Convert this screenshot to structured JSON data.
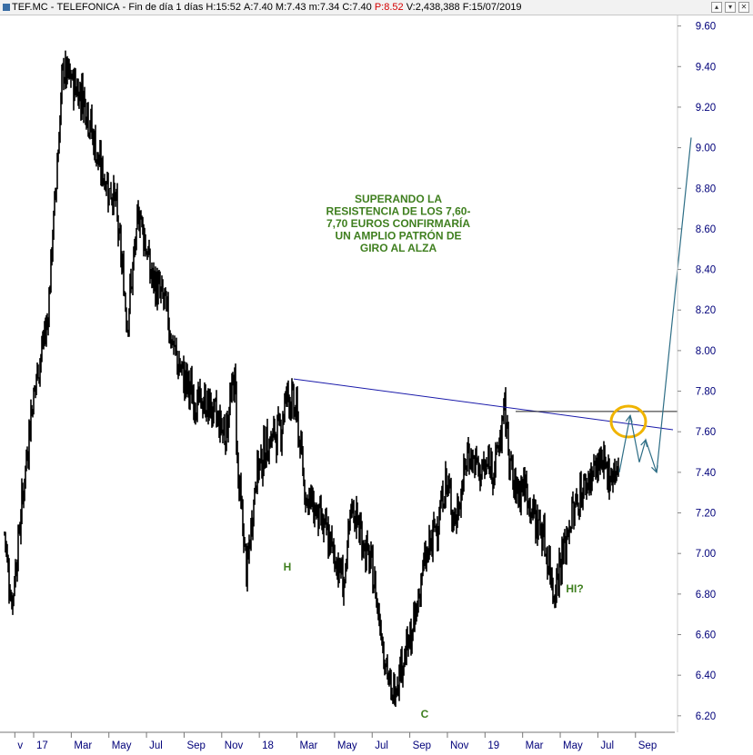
{
  "header": {
    "symbol": "TEF.MC",
    "name": "TELEFONICA",
    "period": "Fin de día 1 días",
    "h_label": "H:",
    "h_value": "15:52",
    "a_label": "A:",
    "a_value": "7.40",
    "m_label": "M:",
    "m_value": "7.43",
    "m2_label": "m:",
    "m2_value": "7.34",
    "c_label": "C:",
    "c_value": "7.40",
    "p_label": "P:",
    "p_value": "8.52",
    "v_label": "V:",
    "v_value": "2,438,388",
    "f_label": "F:",
    "f_value": "15/07/2019",
    "sep": "-"
  },
  "window_buttons": [
    "▴",
    "▾",
    "✕"
  ],
  "chart_data": {
    "type": "line",
    "title": "",
    "xlabel": "",
    "ylabel": "",
    "ylim": [
      6.1,
      9.62
    ],
    "y_ticks": [
      "9.60",
      "9.40",
      "9.20",
      "9.00",
      "8.80",
      "8.60",
      "8.40",
      "8.20",
      "8.00",
      "7.80",
      "7.60",
      "7.40",
      "7.20",
      "7.00",
      "6.80",
      "6.60",
      "6.40",
      "6.20"
    ],
    "x_ticks": [
      "v",
      "17",
      "Mar",
      "May",
      "Jul",
      "Sep",
      "Nov",
      "18",
      "Mar",
      "May",
      "Jul",
      "Sep",
      "Nov",
      "19",
      "Mar",
      "May",
      "Jul",
      "Sep"
    ],
    "colors": {
      "price": "#000000",
      "resistance": "#1a1aaa",
      "horizontal": "#222222",
      "projection": "#2e6e86",
      "annotation_text": "#3f7f1f",
      "highlight": "#f0b400",
      "axis_text": "#00007a"
    },
    "price_keypoints": [
      [
        0,
        7.1
      ],
      [
        0.012,
        6.75
      ],
      [
        0.045,
        7.75
      ],
      [
        0.07,
        8.15
      ],
      [
        0.095,
        9.38
      ],
      [
        0.13,
        9.25
      ],
      [
        0.155,
        8.9
      ],
      [
        0.18,
        8.75
      ],
      [
        0.2,
        8.15
      ],
      [
        0.22,
        8.7
      ],
      [
        0.24,
        8.35
      ],
      [
        0.26,
        8.25
      ],
      [
        0.28,
        7.95
      ],
      [
        0.31,
        7.75
      ],
      [
        0.335,
        7.72
      ],
      [
        0.36,
        7.6
      ],
      [
        0.375,
        7.88
      ],
      [
        0.38,
        7.4
      ],
      [
        0.395,
        6.9
      ],
      [
        0.41,
        7.4
      ],
      [
        0.43,
        7.55
      ],
      [
        0.45,
        7.62
      ],
      [
        0.46,
        7.8
      ],
      [
        0.475,
        7.7
      ],
      [
        0.49,
        7.3
      ],
      [
        0.51,
        7.2
      ],
      [
        0.53,
        7.05
      ],
      [
        0.555,
        6.85
      ],
      [
        0.565,
        7.25
      ],
      [
        0.58,
        7.1
      ],
      [
        0.6,
        6.9
      ],
      [
        0.615,
        6.6
      ],
      [
        0.63,
        6.28
      ],
      [
        0.645,
        6.45
      ],
      [
        0.665,
        6.6
      ],
      [
        0.68,
        6.9
      ],
      [
        0.7,
        7.1
      ],
      [
        0.72,
        7.35
      ],
      [
        0.735,
        7.15
      ],
      [
        0.755,
        7.5
      ],
      [
        0.775,
        7.4
      ],
      [
        0.8,
        7.45
      ],
      [
        0.815,
        7.7
      ],
      [
        0.83,
        7.3
      ],
      [
        0.845,
        7.35
      ],
      [
        0.86,
        7.2
      ],
      [
        0.875,
        7.12
      ],
      [
        0.895,
        6.82
      ],
      [
        0.91,
        7.0
      ],
      [
        0.925,
        7.2
      ],
      [
        0.94,
        7.3
      ],
      [
        0.955,
        7.38
      ],
      [
        0.97,
        7.45
      ],
      [
        0.975,
        7.4
      ]
    ],
    "resistance_line": {
      "from": [
        "Feb 2018",
        7.86
      ],
      "to": [
        "Sep 2019",
        7.61
      ]
    },
    "horizontal_line": {
      "from": [
        "Feb 2019",
        7.7
      ],
      "to": [
        "Sep 2019",
        7.7
      ]
    },
    "projection_path": [
      [
        7.4,
        7.4
      ],
      [
        7.7,
        7.65
      ],
      [
        7.55,
        7.45
      ],
      [
        7.4,
        9.05
      ]
    ],
    "annotations": {
      "main_text": [
        "SUPERANDO LA",
        "RESISTENCIA DE LOS 7,60-",
        "7,70 EUROS CONFIRMARÍA",
        "UN AMPLIO PATRÓN DE",
        "GIRO AL ALZA"
      ],
      "h": "H",
      "c": "C",
      "hi": "HI?"
    }
  }
}
